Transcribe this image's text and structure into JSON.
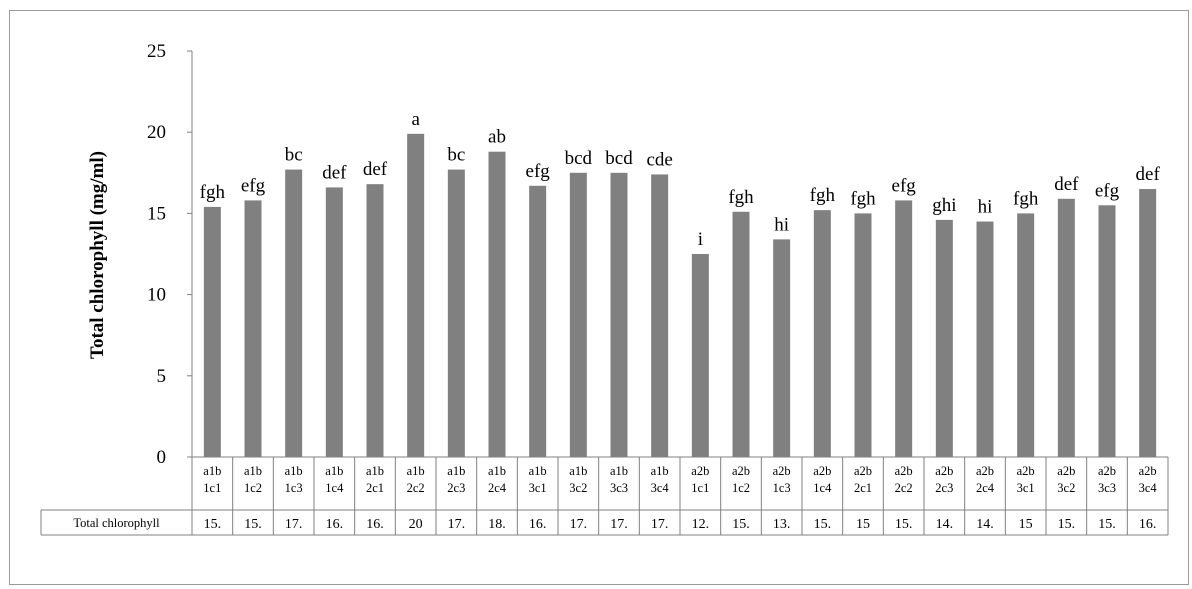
{
  "chart_data": {
    "type": "bar",
    "ylabel": "Total chlorophyll (mg/ml)",
    "xlabel": "",
    "ylim": [
      0,
      25
    ],
    "yticks": [
      "0",
      "5",
      "10",
      "15",
      "20",
      "25"
    ],
    "grid": false,
    "bar_color": "#808080",
    "categories": [
      [
        "a1b",
        "1c1"
      ],
      [
        "a1b",
        "1c2"
      ],
      [
        "a1b",
        "1c3"
      ],
      [
        "a1b",
        "1c4"
      ],
      [
        "a1b",
        "2c1"
      ],
      [
        "a1b",
        "2c2"
      ],
      [
        "a1b",
        "2c3"
      ],
      [
        "a1b",
        "2c4"
      ],
      [
        "a1b",
        "3c1"
      ],
      [
        "a1b",
        "3c2"
      ],
      [
        "a1b",
        "3c3"
      ],
      [
        "a1b",
        "3c4"
      ],
      [
        "a2b",
        "1c1"
      ],
      [
        "a2b",
        "1c2"
      ],
      [
        "a2b",
        "1c3"
      ],
      [
        "a2b",
        "1c4"
      ],
      [
        "a2b",
        "2c1"
      ],
      [
        "a2b",
        "2c2"
      ],
      [
        "a2b",
        "2c3"
      ],
      [
        "a2b",
        "2c4"
      ],
      [
        "a2b",
        "3c1"
      ],
      [
        "a2b",
        "3c2"
      ],
      [
        "a2b",
        "3c3"
      ],
      [
        "a2b",
        "3c4"
      ]
    ],
    "series": [
      {
        "name": "Total chlorophyll",
        "values": [
          15.4,
          15.8,
          17.7,
          16.6,
          16.8,
          19.9,
          17.7,
          18.8,
          16.7,
          17.5,
          17.5,
          17.4,
          12.5,
          15.1,
          13.4,
          15.2,
          15.0,
          15.8,
          14.6,
          14.5,
          15.0,
          15.9,
          15.5,
          16.5
        ]
      }
    ],
    "significance_labels": [
      "fgh",
      "efg",
      "bc",
      "def",
      "def",
      "a",
      "bc",
      "ab",
      "efg",
      "bcd",
      "bcd",
      "cde",
      "i",
      "fgh",
      "hi",
      "fgh",
      "fgh",
      "efg",
      "ghi",
      "hi",
      "fgh",
      "def",
      "efg",
      "def"
    ],
    "table": {
      "row_label": "Total chlorophyll",
      "cells": [
        "15.",
        "15.",
        "17.",
        "16.",
        "16.",
        "20",
        "17.",
        "18.",
        "16.",
        "17.",
        "17.",
        "17.",
        "12.",
        "15.",
        "13.",
        "15.",
        "15",
        "15.",
        "14.",
        "14.",
        "15",
        "15.",
        "15.",
        "16."
      ]
    }
  }
}
